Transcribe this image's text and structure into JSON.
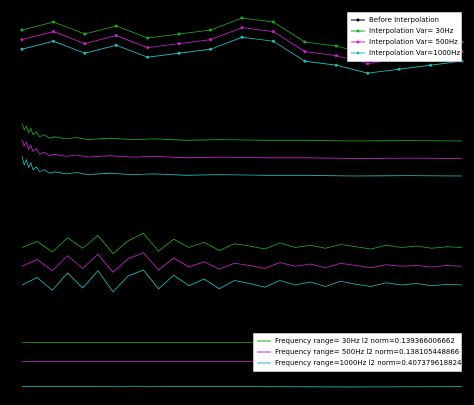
{
  "chart_data": [
    {
      "type": "line",
      "markers": true,
      "legend": "upper right",
      "xlim": [
        0,
        14
      ],
      "ylim": [
        0,
        10
      ],
      "x": [
        0,
        1,
        2,
        3,
        4,
        5,
        6,
        7,
        8,
        9,
        10,
        11,
        12,
        13,
        14
      ],
      "series": [
        {
          "name": "Before Interpolation",
          "color": "#000000",
          "values": [
            6.3,
            7.3,
            5.8,
            6.8,
            5.3,
            5.8,
            6.3,
            7.8,
            7.3,
            4.8,
            4.3,
            3.3,
            3.8,
            4.3,
            4.8
          ]
        },
        {
          "name": "Interpolation Var=  30Hz",
          "color": "#22aa22",
          "values": [
            7.5,
            8.5,
            7,
            8,
            6.5,
            7,
            7.5,
            9,
            8.5,
            6,
            5.5,
            4.5,
            5,
            5.5,
            6
          ]
        },
        {
          "name": "Interpolation Var= 500Hz",
          "color": "#cc22cc",
          "values": [
            6.3,
            7.3,
            5.8,
            6.8,
            5.3,
            5.8,
            6.3,
            7.8,
            7.3,
            4.8,
            4.3,
            3.3,
            3.8,
            4.3,
            4.8
          ]
        },
        {
          "name": "Interpolation Var=1000Hz",
          "color": "#22bbbb",
          "values": [
            5.1,
            6.1,
            4.6,
            5.6,
            4.1,
            4.6,
            5.1,
            6.6,
            6.1,
            3.6,
            3.1,
            2.1,
            2.6,
            3.1,
            3.6
          ]
        }
      ]
    },
    {
      "type": "line",
      "xlim": [
        0,
        400
      ],
      "ylim": [
        0,
        10
      ],
      "x": [
        0,
        2,
        4,
        6,
        8,
        10,
        13,
        16,
        20,
        25,
        30,
        40,
        50,
        60,
        80,
        100,
        120,
        150,
        180,
        220,
        260,
        300,
        350,
        400
      ],
      "series": [
        {
          "color": "#22aa22",
          "values": [
            9.5,
            8.6,
            9.1,
            8.2,
            8.8,
            7.9,
            8.3,
            7.6,
            7.9,
            7.4,
            7.6,
            7.3,
            7.5,
            7.2,
            7.4,
            7.2,
            7.3,
            7.1,
            7.2,
            7.1,
            7.1,
            7,
            7.05,
            7
          ]
        },
        {
          "color": "#cc22cc",
          "values": [
            7.2,
            6.3,
            6.8,
            5.8,
            6.4,
            5.5,
            5.9,
            5.1,
            5.4,
            4.9,
            5.1,
            4.8,
            5,
            4.7,
            4.9,
            4.7,
            4.8,
            4.6,
            4.7,
            4.6,
            4.6,
            4.5,
            4.55,
            4.5
          ]
        },
        {
          "color": "#22bbbb",
          "values": [
            4.8,
            3.6,
            4.3,
            3.2,
            3.9,
            2.9,
            3.3,
            2.6,
            2.9,
            2.4,
            2.6,
            2.3,
            2.5,
            2.2,
            2.4,
            2.2,
            2.3,
            2.1,
            2.2,
            2.1,
            2.1,
            2,
            2.05,
            2
          ]
        }
      ]
    },
    {
      "type": "line",
      "xlim": [
        0,
        29
      ],
      "ylim": [
        0,
        10
      ],
      "x": [
        0,
        1,
        2,
        3,
        4,
        5,
        6,
        7,
        8,
        9,
        10,
        11,
        12,
        13,
        14,
        15,
        16,
        17,
        18,
        19,
        20,
        21,
        22,
        23,
        24,
        25,
        26,
        27,
        28,
        29
      ],
      "series": [
        {
          "color": "#22aa22",
          "values": [
            7,
            7.8,
            6.4,
            8.3,
            6.9,
            8.6,
            6.2,
            7.9,
            8.9,
            6.5,
            8.1,
            7,
            7.7,
            6.6,
            7.5,
            7.2,
            6.8,
            7.6,
            7,
            7.3,
            6.9,
            7.4,
            7.1,
            6.8,
            7.3,
            7,
            7.2,
            6.9,
            7.1,
            7
          ]
        },
        {
          "color": "#cc22cc",
          "values": [
            4.5,
            5.4,
            3.9,
            5.9,
            4.2,
            6.1,
            3.7,
            5.5,
            6.3,
            4,
            5.6,
            4.4,
            5.1,
            4.1,
            4.9,
            4.6,
            4.2,
            5,
            4.5,
            4.8,
            4.3,
            4.9,
            4.6,
            4.3,
            4.7,
            4.5,
            4.6,
            4.4,
            4.6,
            4.5
          ]
        },
        {
          "color": "#22bbbb",
          "values": [
            2,
            3,
            1.3,
            3.6,
            1.6,
            3.9,
            1.1,
            3.2,
            4,
            1.5,
            3.3,
            1.9,
            2.8,
            1.5,
            2.6,
            2.2,
            1.7,
            2.6,
            2,
            2.4,
            1.8,
            2.5,
            2.1,
            1.8,
            2.3,
            2,
            2.2,
            1.9,
            2.1,
            2
          ]
        }
      ]
    },
    {
      "type": "line",
      "legend": "lower right",
      "xlim": [
        0,
        4
      ],
      "ylim": [
        0,
        10
      ],
      "x": [
        0,
        1,
        2,
        3,
        4
      ],
      "series": [
        {
          "name": "Frequency range=  30Hz l2 norm=0.139366006662",
          "color": "#22aa22",
          "values": [
            7.5,
            7.5,
            7.5,
            7.5,
            7.5
          ]
        },
        {
          "name": "Frequency range= 500Hz l2 norm=0.138105448866",
          "color": "#cc22cc",
          "values": [
            4.8,
            4.8,
            4.8,
            4.8,
            4.8
          ]
        },
        {
          "name": "Frequency range=1000Hz l2 norm=0.407379618824",
          "color": "#22bbbb",
          "values": [
            1.2,
            1.25,
            1.2,
            1.15,
            1.2
          ]
        }
      ]
    }
  ]
}
